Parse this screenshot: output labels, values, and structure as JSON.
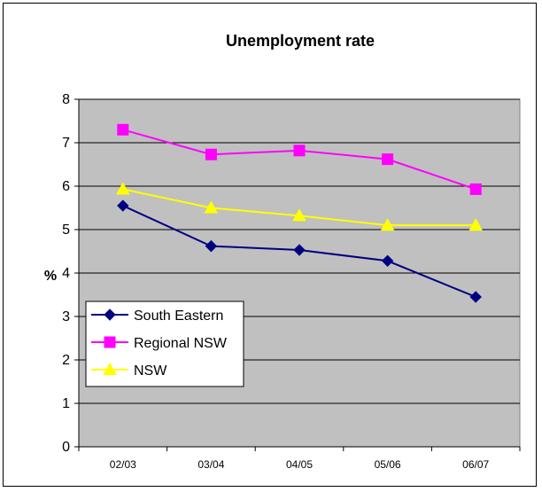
{
  "chart_data": {
    "type": "line",
    "title": "Unemployment rate",
    "xlabel": "",
    "ylabel": "%",
    "ylim": [
      0,
      8
    ],
    "yticks": [
      0,
      1,
      2,
      3,
      4,
      5,
      6,
      7,
      8
    ],
    "grid": true,
    "legend_position": "lower-left",
    "plot_background": "#c0c0c0",
    "categories": [
      "02/03",
      "03/04",
      "04/05",
      "05/06",
      "06/07"
    ],
    "series": [
      {
        "name": "South Eastern",
        "values": [
          5.55,
          4.62,
          4.53,
          4.28,
          3.45
        ],
        "color": "#000080",
        "marker": "diamond"
      },
      {
        "name": "Regional NSW",
        "values": [
          7.3,
          6.73,
          6.82,
          6.62,
          5.93
        ],
        "color": "#ff00ff",
        "marker": "square"
      },
      {
        "name": "NSW",
        "values": [
          5.93,
          5.5,
          5.32,
          5.1,
          5.1
        ],
        "color": "#ffff00",
        "marker": "triangle"
      }
    ]
  }
}
